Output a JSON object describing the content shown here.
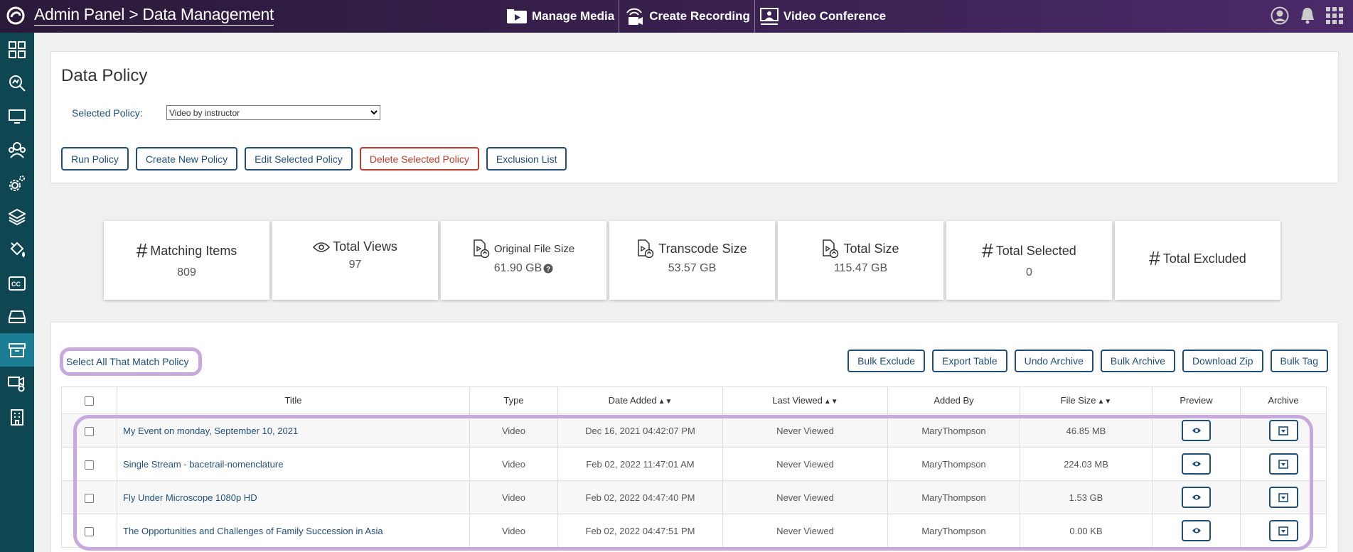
{
  "header": {
    "title": "Admin Panel > Data Management",
    "nav": [
      "Manage Media",
      "Create Recording",
      "Video Conference"
    ]
  },
  "sidebar": {
    "icons": [
      "dashboard-icon",
      "search-analytics-icon",
      "monitor-icon",
      "users-icon",
      "settings-icon",
      "layers-icon",
      "paint-bucket-icon",
      "captions-icon",
      "storage-icon",
      "archive-icon",
      "video-settings-icon",
      "building-icon"
    ],
    "active_index": 9
  },
  "policy": {
    "title": "Data Policy",
    "selected_label": "Selected Policy:",
    "selected_value": "Video by instructor",
    "buttons": {
      "run": "Run Policy",
      "create": "Create New Policy",
      "edit": "Edit Selected Policy",
      "delete": "Delete Selected Policy",
      "exclusion": "Exclusion List"
    }
  },
  "stats": {
    "matching_items": {
      "label": "Matching Items",
      "value": "809"
    },
    "total_views": {
      "label": "Total Views",
      "value": "97"
    },
    "original_file_size": {
      "label": "Original File Size",
      "value": "61.90 GB"
    },
    "transcode_size": {
      "label": "Transcode Size",
      "value": "53.57 GB"
    },
    "total_size": {
      "label": "Total Size",
      "value": "115.47 GB"
    },
    "total_selected": {
      "label": "Total Selected",
      "value": "0"
    },
    "total_excluded": {
      "label": "Total Excluded",
      "value": ""
    }
  },
  "actions": {
    "select_all": "Select All That Match Policy",
    "bulk_exclude": "Bulk Exclude",
    "export_table": "Export Table",
    "undo_archive": "Undo Archive",
    "bulk_archive": "Bulk Archive",
    "download_zip": "Download Zip",
    "bulk_tag": "Bulk Tag"
  },
  "table": {
    "headers": {
      "title": "Title",
      "type": "Type",
      "date_added": "Date Added",
      "last_viewed": "Last Viewed",
      "added_by": "Added By",
      "file_size": "File Size",
      "preview": "Preview",
      "archive": "Archive"
    },
    "rows": [
      {
        "title": "My Event on monday, September 10, 2021",
        "type": "Video",
        "date_added": "Dec 16, 2021 04:42:07 PM",
        "last_viewed": "Never Viewed",
        "added_by": "MaryThompson",
        "file_size": "46.85 MB"
      },
      {
        "title": "Single Stream - bacetrail-nomenclature",
        "type": "Video",
        "date_added": "Feb 02, 2022 11:47:01 AM",
        "last_viewed": "Never Viewed",
        "added_by": "MaryThompson",
        "file_size": "224.03 MB"
      },
      {
        "title": "Fly Under Microscope 1080p HD",
        "type": "Video",
        "date_added": "Feb 02, 2022 04:47:40 PM",
        "last_viewed": "Never Viewed",
        "added_by": "MaryThompson",
        "file_size": "1.53 GB"
      },
      {
        "title": "The Opportunities and Challenges of Family Succession in Asia",
        "type": "Video",
        "date_added": "Feb 02, 2022 04:47:51 PM",
        "last_viewed": "Never Viewed",
        "added_by": "MaryThompson",
        "file_size": "0.00 KB"
      }
    ]
  },
  "colors": {
    "header_bg": "#3a2150",
    "sidebar_bg": "#0e4651",
    "sidebar_active": "#1b7d94",
    "accent": "#1f4e79",
    "danger": "#c0392b",
    "highlight": "#c8a9de"
  }
}
